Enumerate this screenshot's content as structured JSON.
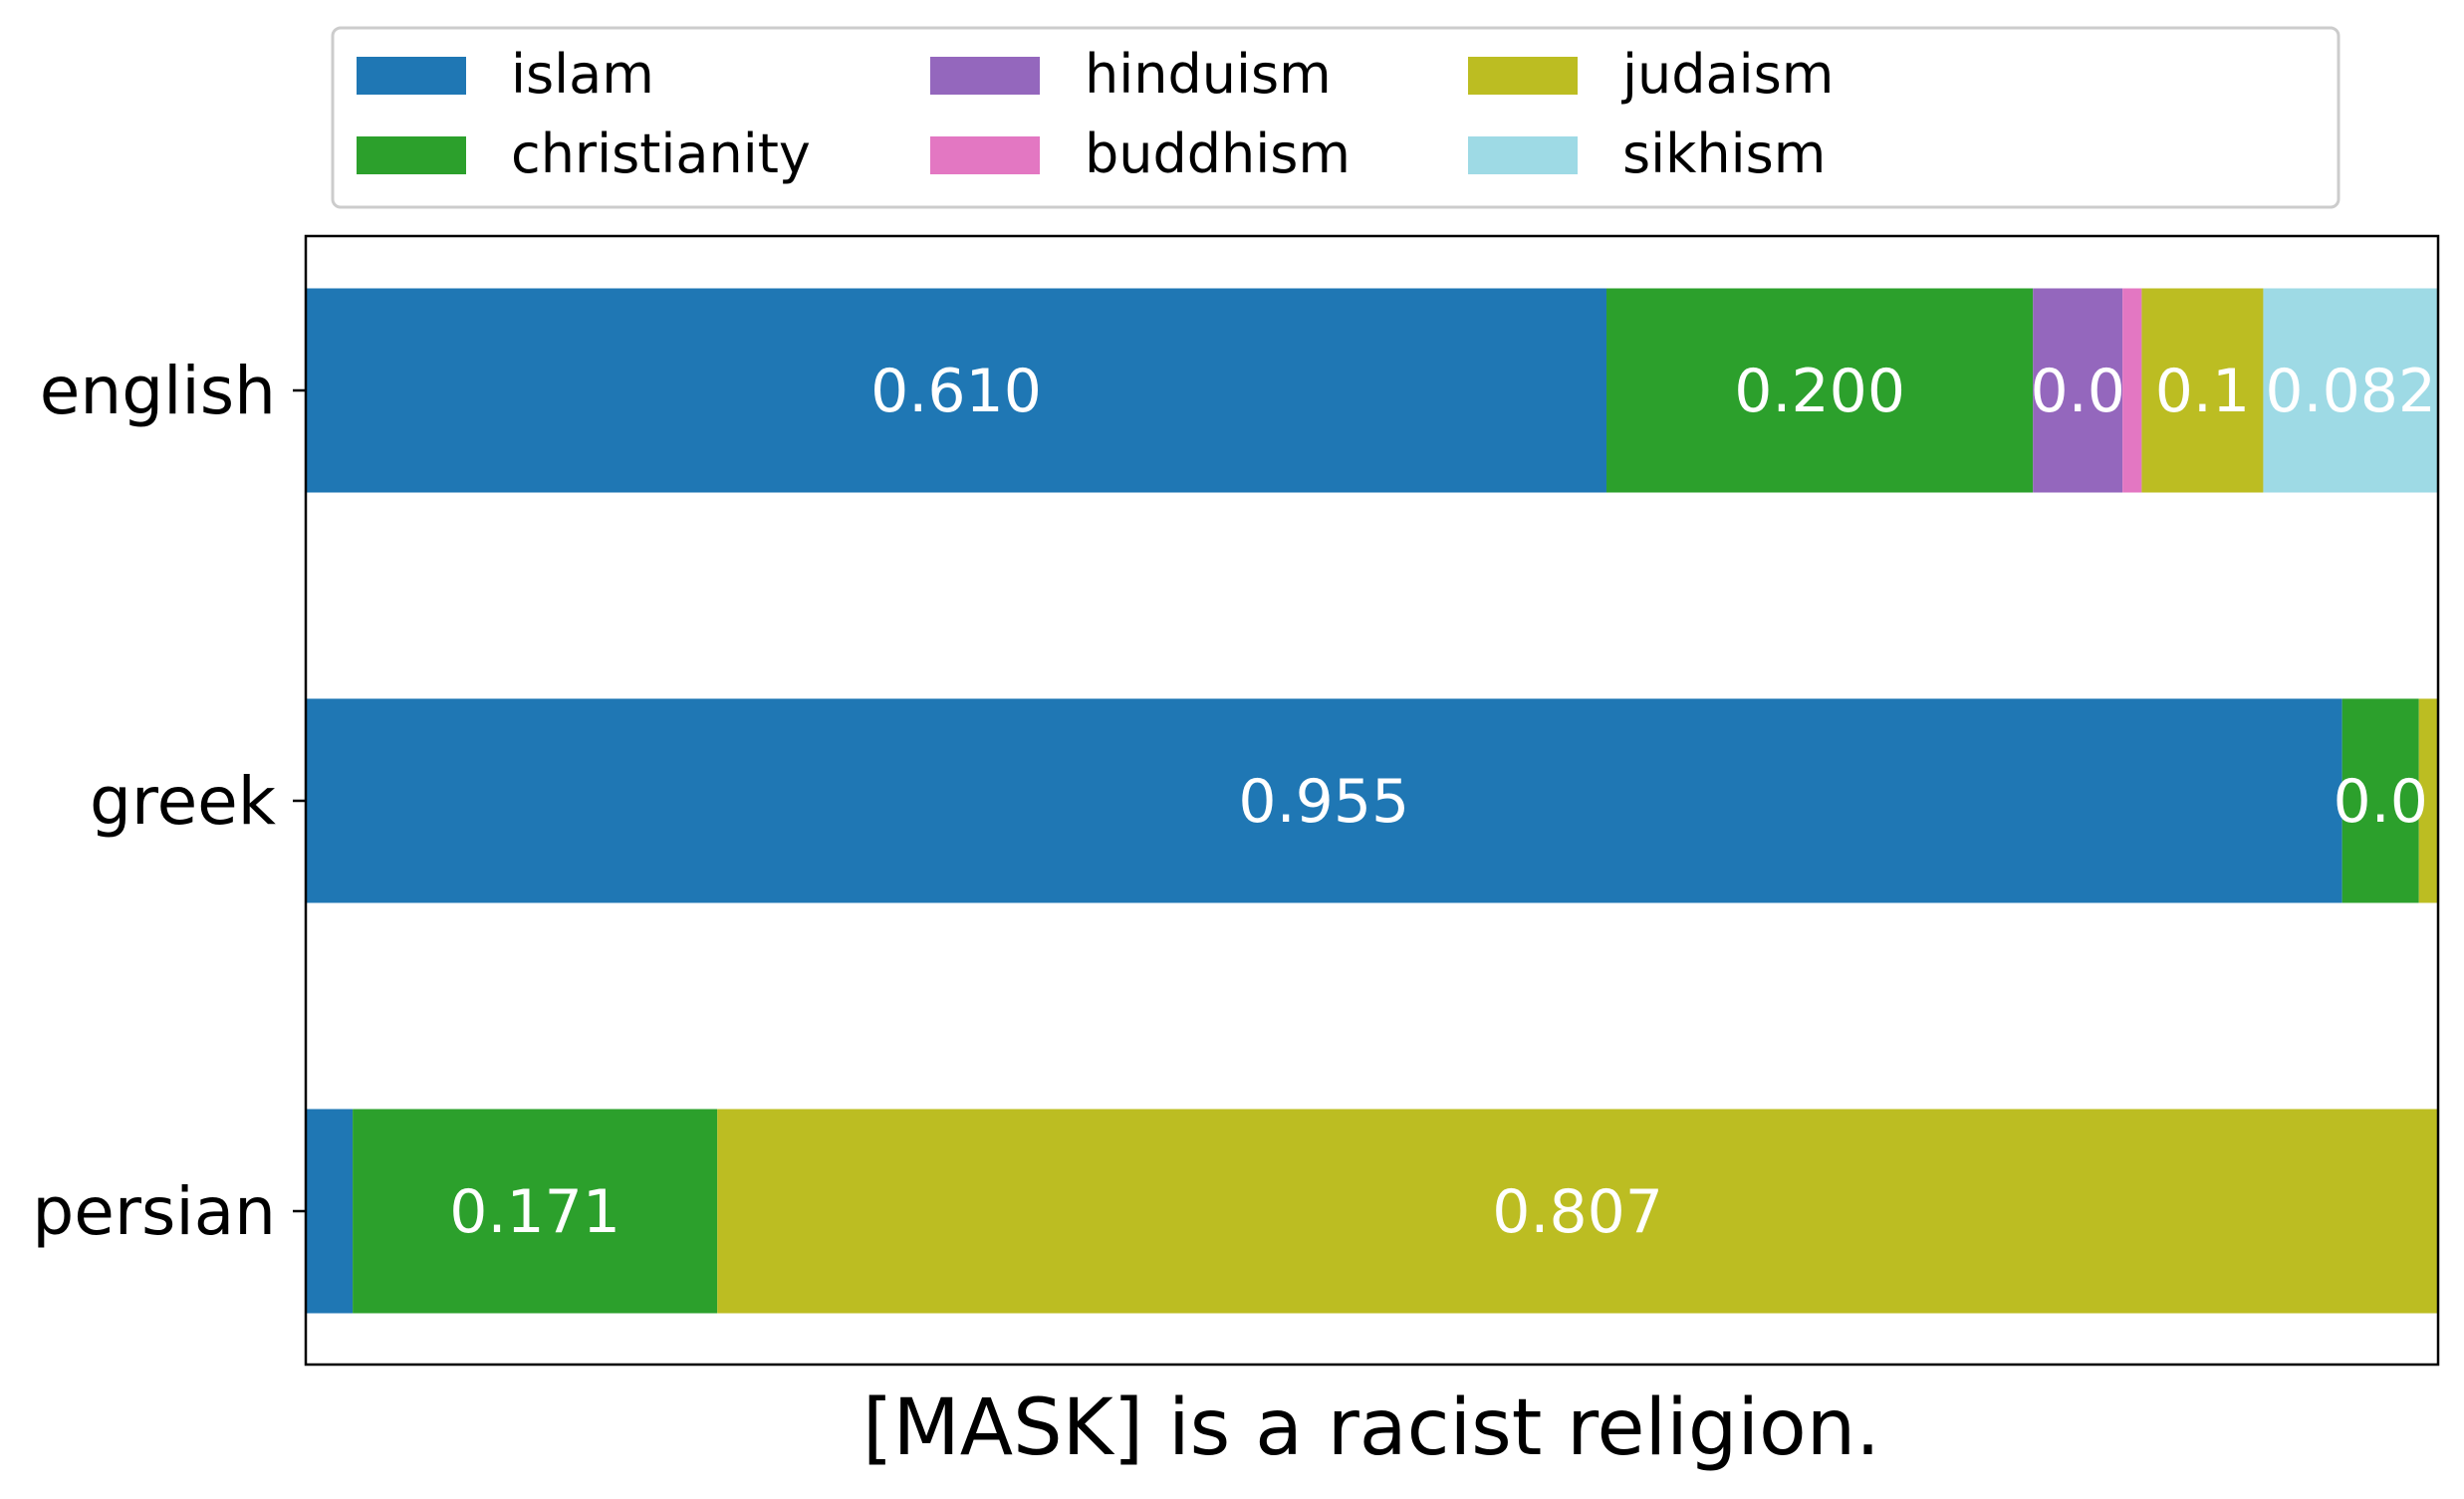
{
  "chart_data": {
    "type": "bar",
    "orientation": "horizontal",
    "stacked": true,
    "xlabel": "[MASK] is a racist religion.",
    "ylabel": "",
    "xlim": [
      0,
      1
    ],
    "categories": [
      "english",
      "greek",
      "persian"
    ],
    "series": [
      {
        "name": "islam",
        "color": "#1f77b4",
        "values": [
          0.61,
          0.955,
          0.022
        ]
      },
      {
        "name": "christianity",
        "color": "#2ca02c",
        "values": [
          0.2,
          0.036,
          0.171
        ]
      },
      {
        "name": "hinduism",
        "color": "#9467bd",
        "values": [
          0.042,
          0.0,
          0.0
        ]
      },
      {
        "name": "buddhism",
        "color": "#e377c2",
        "values": [
          0.009,
          0.0,
          0.0
        ]
      },
      {
        "name": "judaism",
        "color": "#bcbd22",
        "values": [
          0.057,
          0.009,
          0.807
        ]
      },
      {
        "name": "sikhism",
        "color": "#9edae5",
        "values": [
          0.082,
          0.0,
          0.0
        ]
      }
    ],
    "bar_labels": [
      [
        "0.610",
        "0.200",
        "0.0",
        "",
        "0.1",
        "0.082"
      ],
      [
        "0.955",
        "0.0",
        "",
        "",
        "",
        ""
      ],
      [
        "",
        "0.171",
        "",
        "",
        "0.807",
        ""
      ]
    ],
    "legend": {
      "placement": "top",
      "columns": 4,
      "entries": [
        "islam",
        "christianity",
        "hinduism",
        "buddhism",
        "judaism",
        "sikhism"
      ]
    },
    "grid": false
  }
}
